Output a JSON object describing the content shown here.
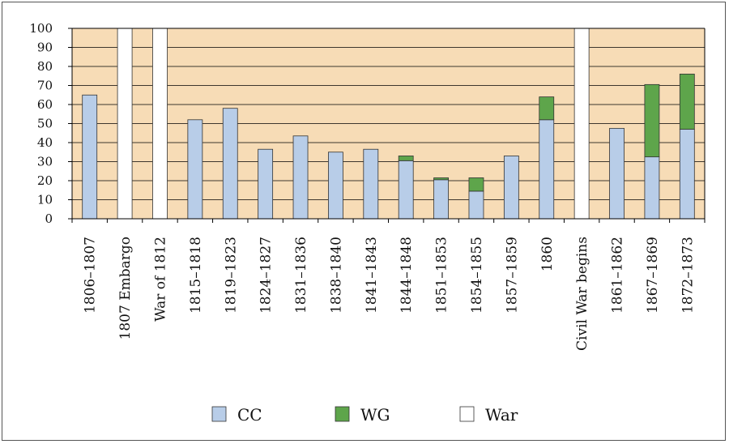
{
  "chart_data": {
    "type": "bar",
    "stacked": true,
    "categories": [
      "1806–1807",
      "1807 Embargo",
      "War of 1812",
      "1815–1818",
      "1819–1823",
      "1824–1827",
      "1831–1836",
      "1838–1840",
      "1841–1843",
      "1844–1848",
      "1851–1853",
      "1854–1855",
      "1857–1859",
      "1860",
      "Civil War begins",
      "1861–1862",
      "1867–1869",
      "1872–1873"
    ],
    "series": [
      {
        "name": "CC",
        "color": "#b8cde8",
        "values": [
          65,
          0,
          0,
          52,
          58,
          36.5,
          43.5,
          35,
          36.5,
          30.5,
          20.5,
          14.5,
          33,
          52,
          0,
          47.5,
          32.5,
          47
        ]
      },
      {
        "name": "WG",
        "color": "#5ea54b",
        "values": [
          0,
          0,
          0,
          0,
          0,
          0,
          0,
          0,
          0,
          2.5,
          1,
          7,
          0,
          12,
          0,
          0,
          38,
          29
        ]
      },
      {
        "name": "War",
        "color": "#ffffff",
        "values": [
          0,
          100,
          100,
          0,
          0,
          0,
          0,
          0,
          0,
          0,
          0,
          0,
          0,
          0,
          100,
          0,
          0,
          0
        ]
      }
    ],
    "ylim": [
      0,
      100
    ],
    "yticks": [
      "0",
      "10",
      "20",
      "30",
      "40",
      "50",
      "60",
      "70",
      "80",
      "90",
      "100"
    ],
    "plot_background": "#f7dcb6",
    "grid": true,
    "legend_position": "bottom"
  }
}
